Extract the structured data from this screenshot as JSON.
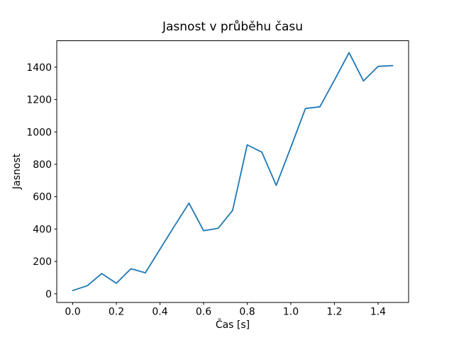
{
  "figure": {
    "background": "#ffffff",
    "text_color": "#000000"
  },
  "chart_data": {
    "type": "line",
    "title": "Jasnost v průběhu času",
    "xlabel": "Čas [s]",
    "ylabel": "Jasnost",
    "x": [
      0.0,
      0.067,
      0.133,
      0.2,
      0.267,
      0.333,
      0.4,
      0.467,
      0.533,
      0.6,
      0.667,
      0.733,
      0.8,
      0.867,
      0.933,
      1.0,
      1.067,
      1.133,
      1.2,
      1.267,
      1.333,
      1.4,
      1.467
    ],
    "series": [
      {
        "name": "Jasnost",
        "color": "#1f77b4",
        "values": [
          20,
          50,
          125,
          65,
          155,
          130,
          275,
          420,
          560,
          390,
          405,
          515,
          920,
          875,
          670,
          905,
          1145,
          1155,
          1320,
          1490,
          1315,
          1405,
          1410
        ]
      }
    ],
    "xlim": [
      -0.0733,
      1.54
    ],
    "ylim": [
      -53.5,
      1563.5
    ],
    "xticks": [
      0.0,
      0.2,
      0.4,
      0.6,
      0.8,
      1.0,
      1.2,
      1.4
    ],
    "xtick_labels": [
      "0.0",
      "0.2",
      "0.4",
      "0.6",
      "0.8",
      "1.0",
      "1.2",
      "1.4"
    ],
    "yticks": [
      0,
      200,
      400,
      600,
      800,
      1000,
      1200,
      1400
    ],
    "ytick_labels": [
      "0",
      "200",
      "400",
      "600",
      "800",
      "1000",
      "1200",
      "1400"
    ],
    "grid": false,
    "legend": "none"
  }
}
